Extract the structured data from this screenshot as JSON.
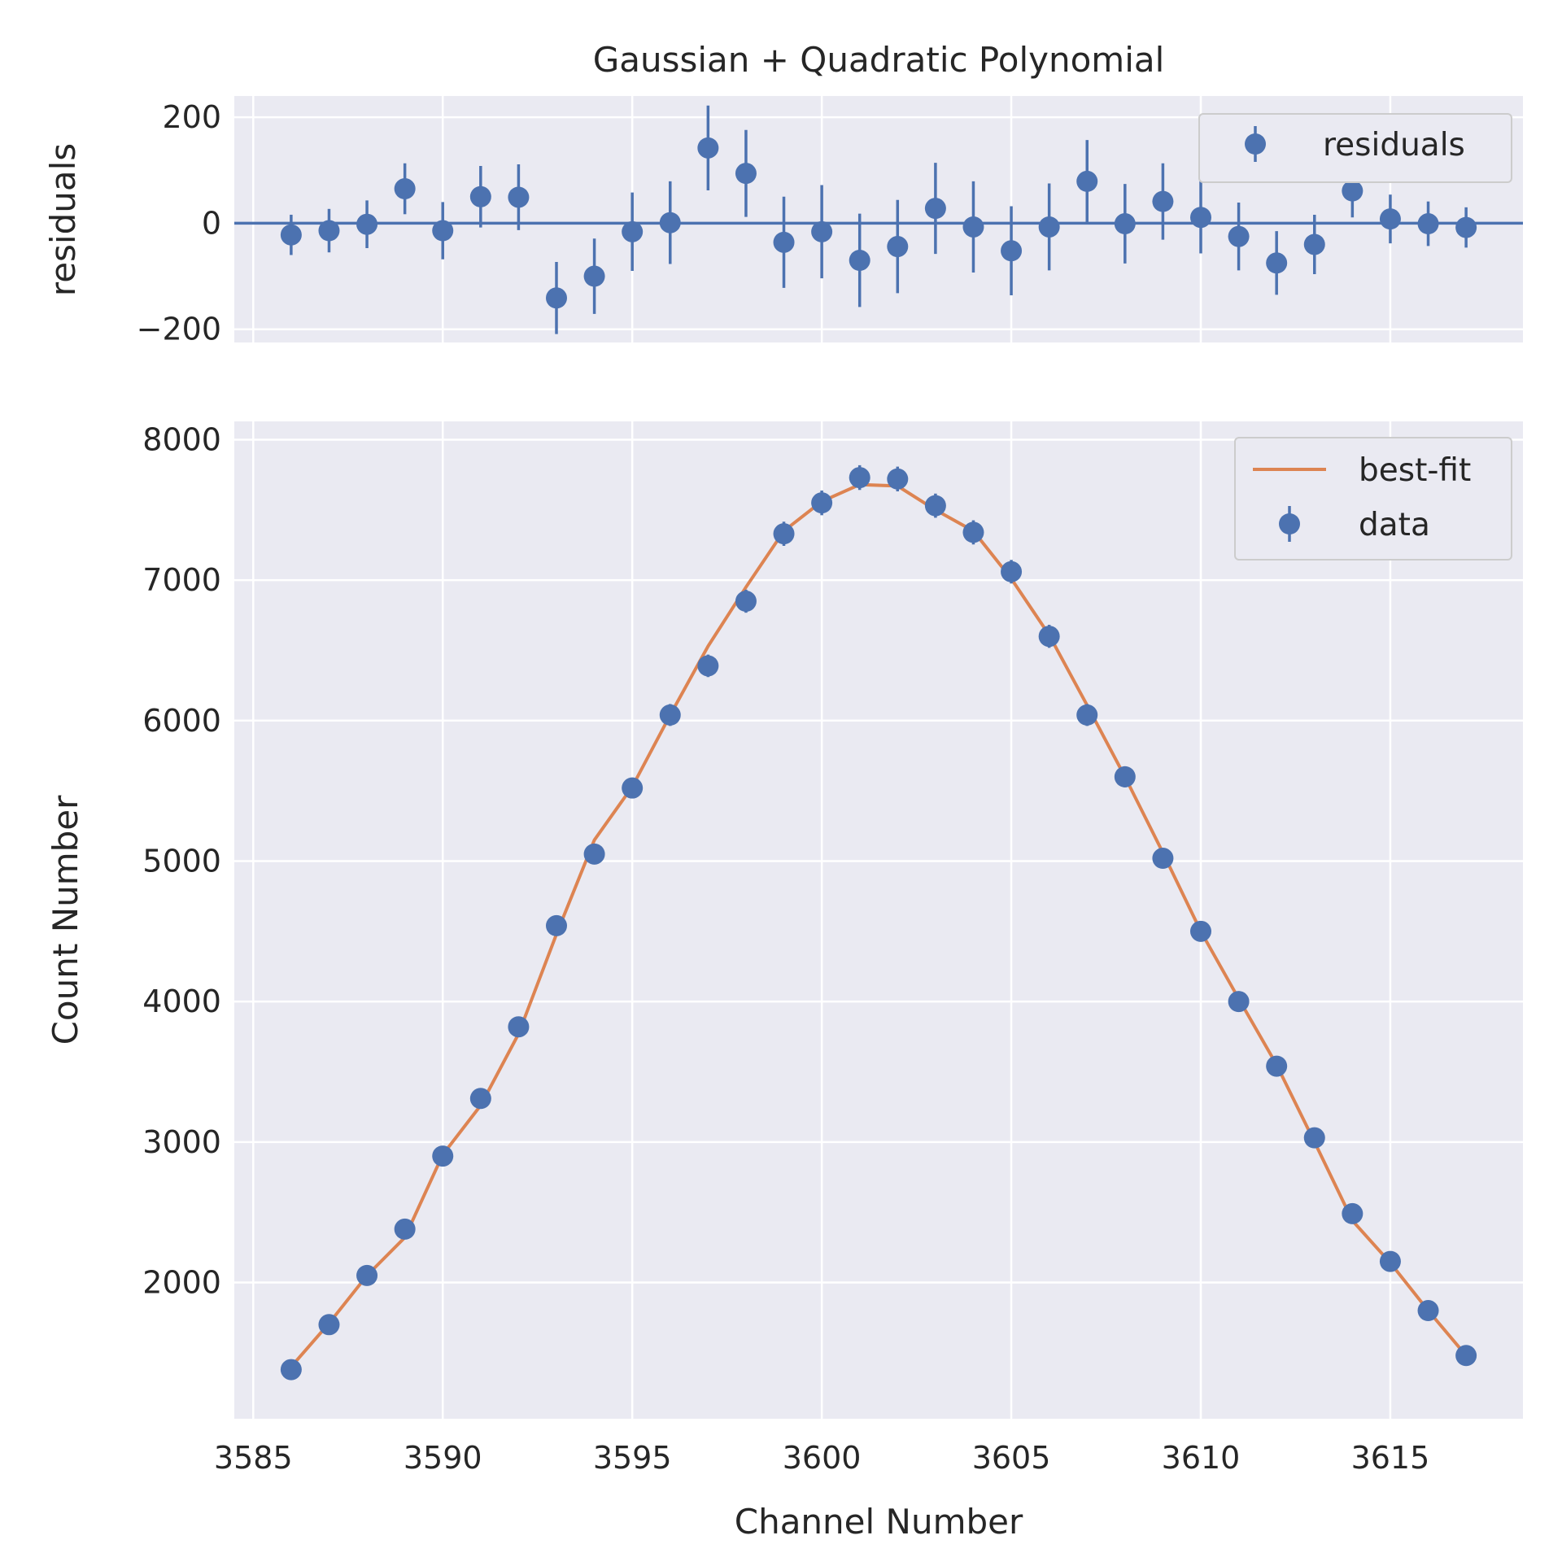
{
  "chart_data": [
    {
      "type": "scatter",
      "title": "Gaussian + Quadratic Polynomial",
      "xlabel": "",
      "ylabel": "residuals",
      "xlim": [
        3584.5,
        3618.5
      ],
      "ylim": [
        -225,
        240
      ],
      "yticks": [
        -200,
        0,
        200
      ],
      "ytick_labels": [
        "−200",
        "0",
        "200"
      ],
      "xticks": [
        3585,
        3590,
        3595,
        3600,
        3605,
        3610,
        3615
      ],
      "grid": true,
      "legend_position": "top-right",
      "zero_line": 0,
      "series": [
        {
          "name": "residuals",
          "x": [
            3586,
            3587,
            3588,
            3589,
            3590,
            3591,
            3592,
            3593,
            3594,
            3595,
            3596,
            3597,
            3598,
            3599,
            3600,
            3601,
            3602,
            3603,
            3604,
            3605,
            3606,
            3607,
            3608,
            3609,
            3610,
            3611,
            3612,
            3613,
            3614,
            3615,
            3616,
            3617
          ],
          "y": [
            -22,
            -14,
            -2,
            65,
            -14,
            50,
            49,
            -141,
            -100,
            -16,
            1,
            142,
            94,
            -36,
            -16,
            -70,
            -44,
            28,
            -7,
            -52,
            -7,
            79,
            -1,
            41,
            11,
            -25,
            -75,
            -40,
            61,
            8,
            -1,
            -8
          ],
          "err": [
            38,
            41,
            45,
            48,
            54,
            58,
            62,
            68,
            71,
            74,
            78,
            80,
            82,
            86,
            88,
            88,
            88,
            86,
            86,
            84,
            82,
            78,
            75,
            72,
            68,
            64,
            60,
            56,
            50,
            46,
            42,
            38
          ],
          "color": "#4c72b0"
        }
      ]
    },
    {
      "type": "scatter",
      "title": "",
      "xlabel": "Channel Number",
      "ylabel": "Count Number",
      "xlim": [
        3584.5,
        3618.5
      ],
      "ylim": [
        1030,
        8130
      ],
      "yticks": [
        2000,
        3000,
        4000,
        5000,
        6000,
        7000,
        8000
      ],
      "xticks": [
        3585,
        3590,
        3595,
        3600,
        3605,
        3610,
        3615
      ],
      "xtick_labels": [
        "3585",
        "3590",
        "3595",
        "3600",
        "3605",
        "3610",
        "3615"
      ],
      "grid": true,
      "legend_position": "top-right",
      "series": [
        {
          "name": "data",
          "x": [
            3586,
            3587,
            3588,
            3589,
            3590,
            3591,
            3592,
            3593,
            3594,
            3595,
            3596,
            3597,
            3598,
            3599,
            3600,
            3601,
            3602,
            3603,
            3604,
            3605,
            3606,
            3607,
            3608,
            3609,
            3610,
            3611,
            3612,
            3613,
            3614,
            3615,
            3616,
            3617
          ],
          "y": [
            1380,
            1700,
            2050,
            2380,
            2900,
            3310,
            3820,
            4540,
            5050,
            5520,
            6040,
            6390,
            6850,
            7330,
            7550,
            7730,
            7720,
            7530,
            7340,
            7060,
            6600,
            6040,
            5600,
            5020,
            4500,
            4000,
            3540,
            3030,
            2490,
            2150,
            1800,
            1480
          ],
          "err": [
            38,
            41,
            45,
            48,
            54,
            58,
            62,
            68,
            71,
            74,
            78,
            80,
            82,
            86,
            88,
            88,
            88,
            86,
            86,
            84,
            82,
            78,
            75,
            72,
            68,
            64,
            60,
            56,
            50,
            46,
            42,
            38
          ],
          "color": "#4c72b0"
        },
        {
          "name": "best-fit",
          "type": "line",
          "x": [
            3586,
            3587,
            3588,
            3589,
            3590,
            3591,
            3592,
            3593,
            3594,
            3595,
            3596,
            3597,
            3598,
            3599,
            3600,
            3601,
            3602,
            3603,
            3604,
            3605,
            3606,
            3607,
            3608,
            3609,
            3610,
            3611,
            3612,
            3613,
            3614,
            3615,
            3616,
            3617
          ],
          "y": [
            1400,
            1710,
            2050,
            2320,
            2910,
            3260,
            3770,
            4480,
            5150,
            5530,
            6040,
            6530,
            6950,
            7350,
            7560,
            7680,
            7670,
            7500,
            7350,
            7010,
            6610,
            6110,
            5600,
            5060,
            4500,
            4020,
            3550,
            3000,
            2440,
            2140,
            1800,
            1480
          ],
          "color": "#dd8452"
        }
      ]
    }
  ]
}
